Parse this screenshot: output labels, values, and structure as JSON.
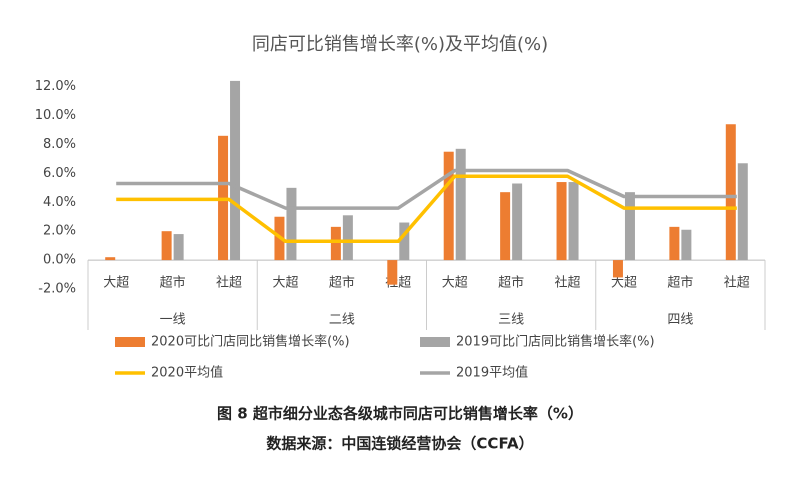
{
  "chart_data": {
    "type": "bar",
    "title": "同店可比销售增长率(%)及平均值(%)",
    "categories": [
      "大超",
      "超市",
      "社超",
      "大超",
      "超市",
      "社超",
      "大超",
      "超市",
      "社超",
      "大超",
      "超市",
      "社超"
    ],
    "groups": [
      "一线",
      "二线",
      "三线",
      "四线"
    ],
    "series": [
      {
        "name": "2020可比门店同比销售增长率(%)",
        "type": "bar",
        "color": "#ED7D31",
        "values": [
          0.2,
          2.0,
          8.6,
          3.0,
          2.3,
          -1.7,
          7.5,
          4.7,
          5.4,
          -1.2,
          2.3,
          9.4
        ]
      },
      {
        "name": "2019可比门店同比销售增长率(%)",
        "type": "bar",
        "color": "#A5A5A5",
        "values": [
          0,
          1.8,
          12.4,
          5.0,
          3.1,
          2.6,
          7.7,
          5.3,
          5.4,
          4.7,
          2.1,
          6.7
        ]
      },
      {
        "name": "2020平均值",
        "type": "line",
        "color": "#FFC000",
        "values": [
          4.2,
          4.2,
          4.2,
          1.3,
          1.3,
          1.3,
          5.8,
          5.8,
          5.8,
          3.6,
          3.6,
          3.6
        ]
      },
      {
        "name": "2019平均值",
        "type": "line",
        "color": "#A5A5A5",
        "values": [
          5.3,
          5.3,
          5.3,
          3.6,
          3.6,
          3.6,
          6.2,
          6.2,
          6.2,
          4.4,
          4.4,
          4.4
        ]
      }
    ],
    "ylim": [
      -2,
      12.6
    ],
    "yticks": [
      {
        "value": -2,
        "label": "-2.0%"
      },
      {
        "value": 0,
        "label": "0.0%"
      },
      {
        "value": 2,
        "label": "2.0%"
      },
      {
        "value": 4,
        "label": "4.0%"
      },
      {
        "value": 6,
        "label": "6.0%"
      },
      {
        "value": 8,
        "label": "8.0%"
      },
      {
        "value": 10,
        "label": "10.0%"
      },
      {
        "value": 12,
        "label": "12.0%"
      }
    ],
    "caption": "图 8  超市细分业态各级城市同店可比销售增长率（%）",
    "source": "数据来源：中国连锁经营协会（CCFA）"
  }
}
